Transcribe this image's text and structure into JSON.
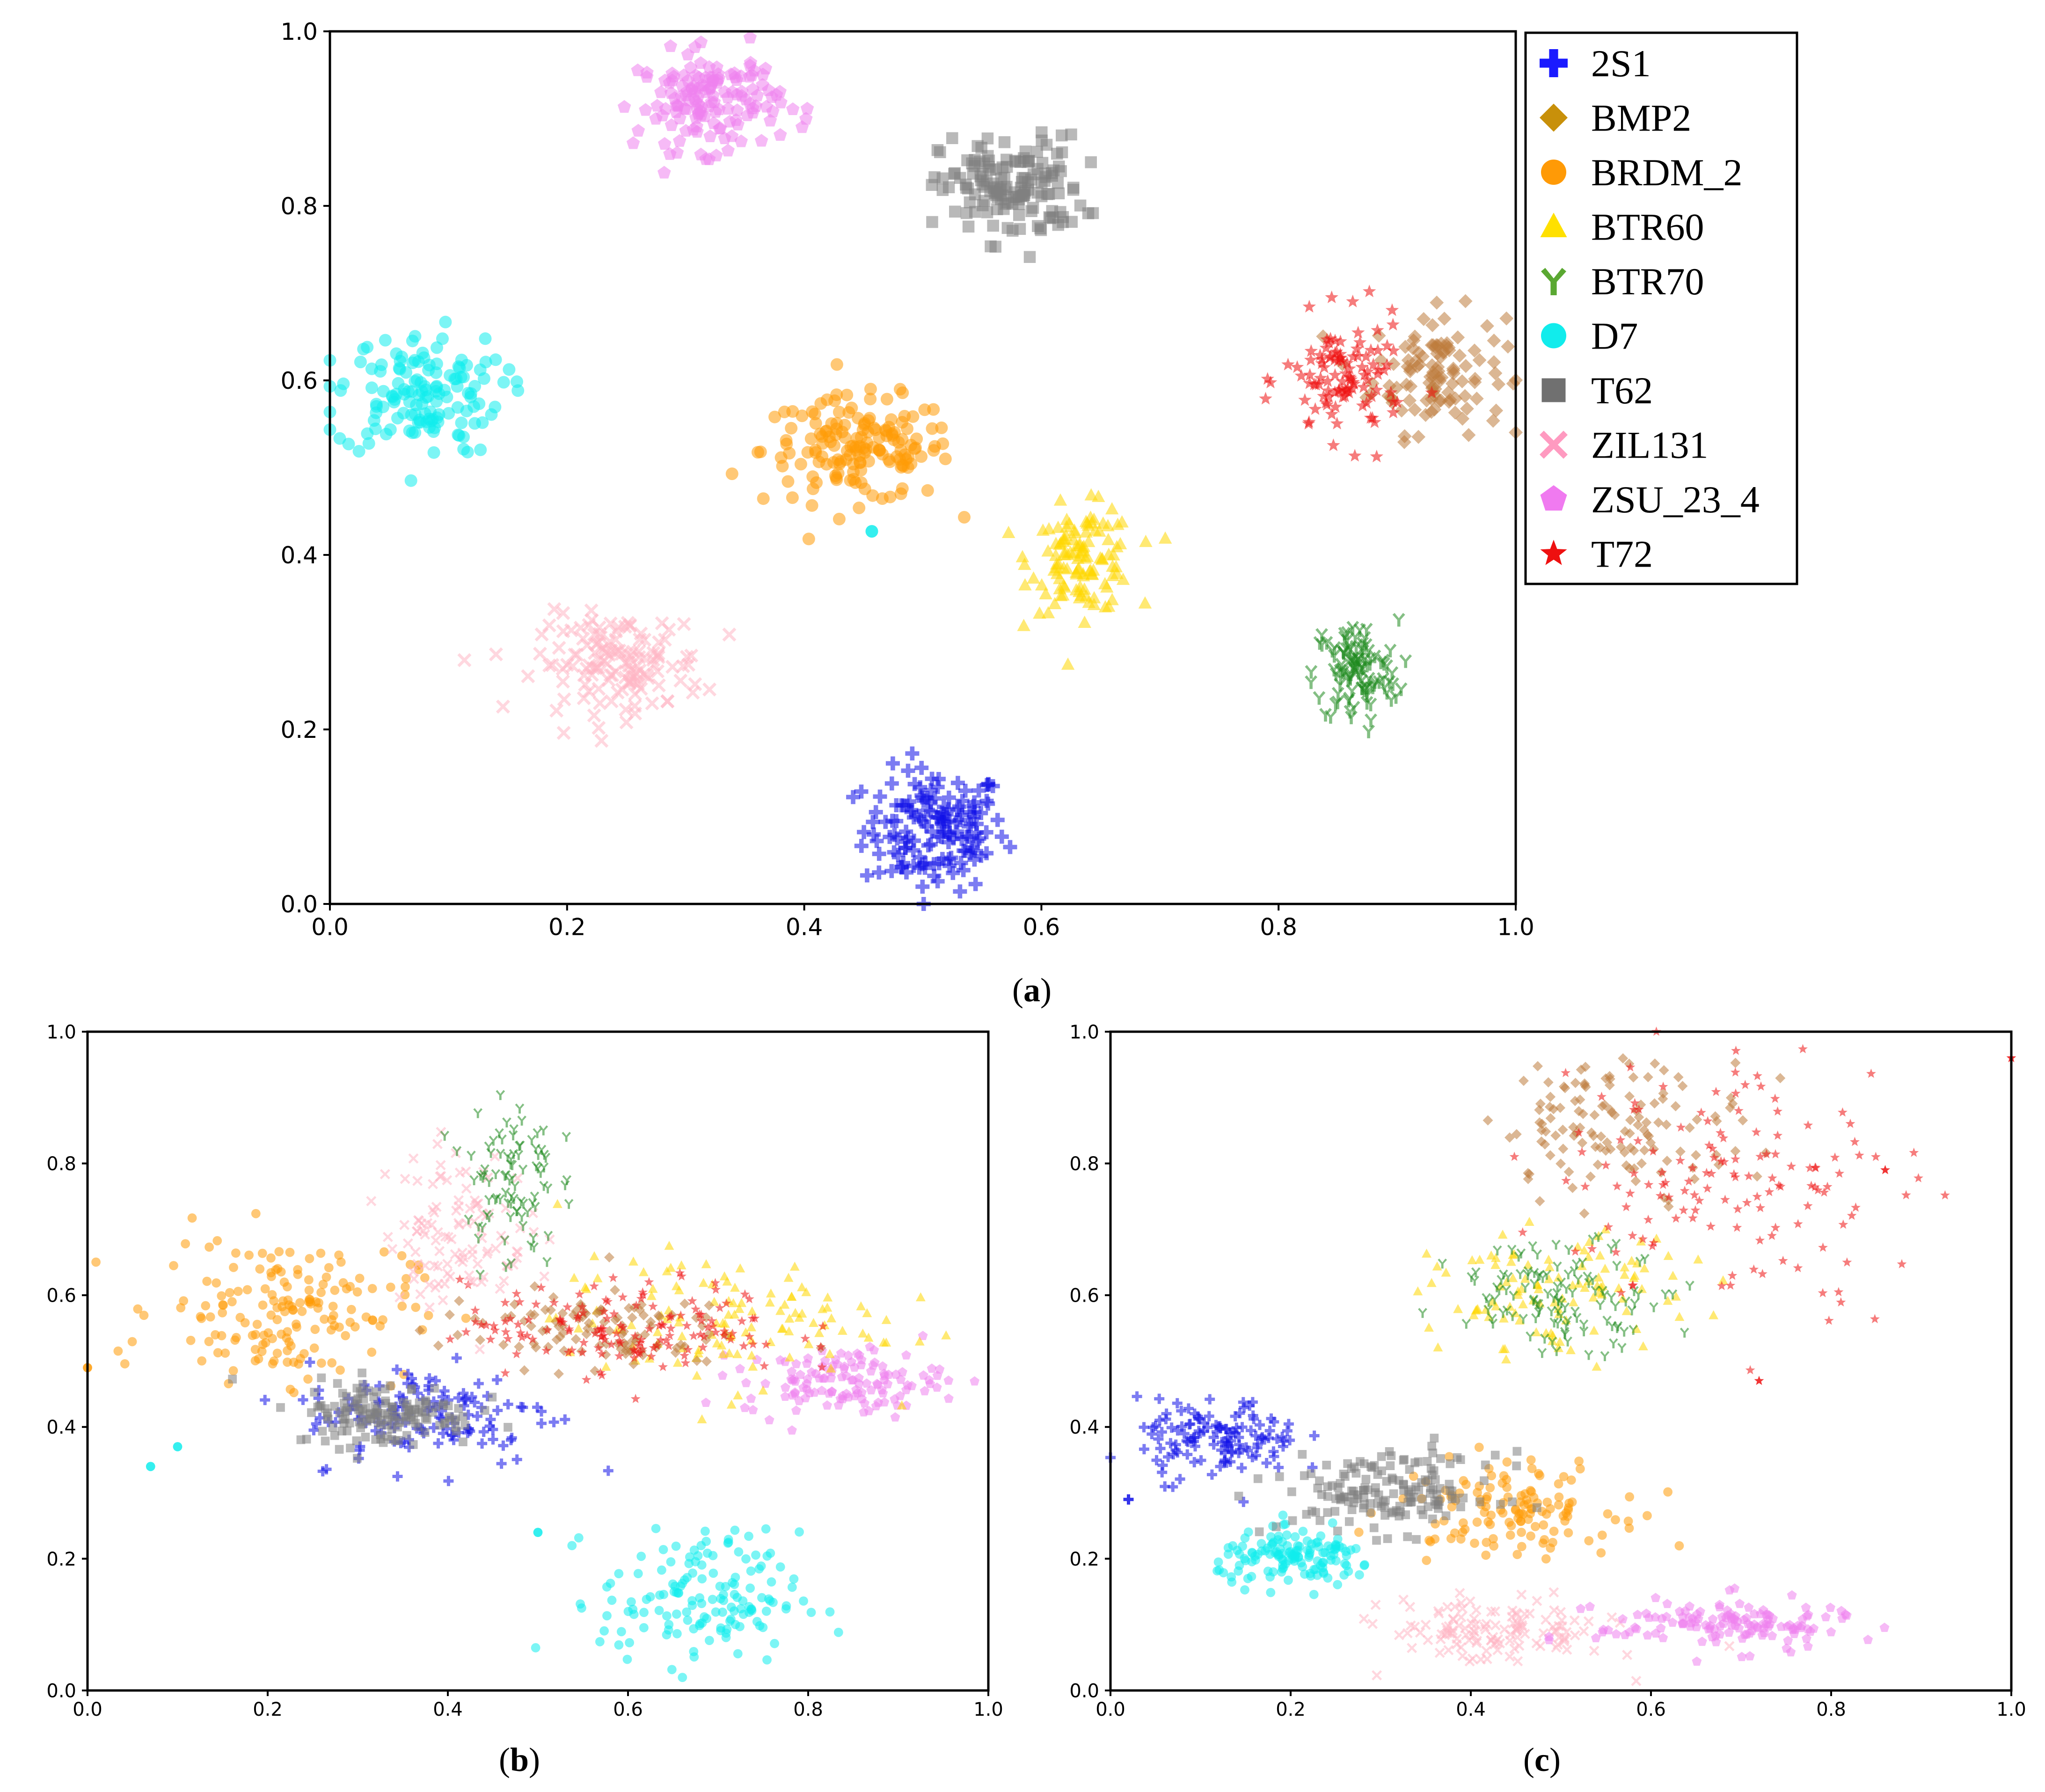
{
  "classes": [
    {
      "name": "2S1",
      "color": "#1010e8",
      "marker": "plus"
    },
    {
      "name": "BMP2",
      "color": "#bd7b3c",
      "marker": "diamond"
    },
    {
      "name": "BRDM_2",
      "color": "#ff9a06",
      "marker": "circle"
    },
    {
      "name": "BTR60",
      "color": "#ffd700",
      "marker": "triangle"
    },
    {
      "name": "BTR70",
      "color": "#1f8a1f",
      "marker": "tri-down"
    },
    {
      "name": "D7",
      "color": "#11ecec",
      "marker": "circle"
    },
    {
      "name": "T62",
      "color": "#808080",
      "marker": "square"
    },
    {
      "name": "ZIL131",
      "color": "#ffb7c5",
      "marker": "x"
    },
    {
      "name": "ZSU_23_4",
      "color": "#ee82ee",
      "marker": "pentagon"
    },
    {
      "name": "T72",
      "color": "#ee1010",
      "marker": "star"
    }
  ],
  "legend_colors": [
    "#1a1aff",
    "#c8900a",
    "#ff9a06",
    "#ffe000",
    "#5aa832",
    "#11ecec",
    "#707070",
    "#ff9ac0",
    "#f07af0",
    "#ee1010"
  ],
  "chart_data": [
    {
      "id": "a",
      "type": "scatter",
      "caption": "a",
      "xlim": [
        0.0,
        1.0
      ],
      "ylim": [
        0.0,
        1.0
      ],
      "xticks": [
        "0.0",
        "0.2",
        "0.4",
        "0.6",
        "0.8",
        "1.0"
      ],
      "yticks": [
        "0.0",
        "0.2",
        "0.4",
        "0.6",
        "0.8",
        "1.0"
      ],
      "legend": [
        "2S1",
        "BMP2",
        "BRDM_2",
        "BTR60",
        "BTR70",
        "D7",
        "T62",
        "ZIL131",
        "ZSU_23_4",
        "T72"
      ],
      "legend_position": "right-top (outside)",
      "clusters": [
        {
          "cls": "2S1",
          "cx": 0.51,
          "cy": 0.085,
          "sx": 0.03,
          "sy": 0.035,
          "n": 150
        },
        {
          "cls": "BMP2",
          "cx": 0.935,
          "cy": 0.61,
          "sx": 0.028,
          "sy": 0.035,
          "n": 110
        },
        {
          "cls": "BRDM_2",
          "cx": 0.445,
          "cy": 0.52,
          "sx": 0.04,
          "sy": 0.03,
          "n": 160
        },
        {
          "cls": "BTR60",
          "cx": 0.635,
          "cy": 0.395,
          "sx": 0.022,
          "sy": 0.03,
          "n": 120
        },
        {
          "cls": "BTR70",
          "cx": 0.865,
          "cy": 0.265,
          "sx": 0.018,
          "sy": 0.03,
          "n": 110
        },
        {
          "cls": "D7",
          "cx": 0.075,
          "cy": 0.585,
          "sx": 0.035,
          "sy": 0.035,
          "n": 140
        },
        {
          "cls": "T62",
          "cx": 0.575,
          "cy": 0.82,
          "sx": 0.03,
          "sy": 0.03,
          "n": 150
        },
        {
          "cls": "ZIL131",
          "cx": 0.245,
          "cy": 0.275,
          "sx": 0.035,
          "sy": 0.028,
          "n": 140
        },
        {
          "cls": "ZSU_23_4",
          "cx": 0.32,
          "cy": 0.92,
          "sx": 0.03,
          "sy": 0.028,
          "n": 150
        },
        {
          "cls": "T72",
          "cx": 0.855,
          "cy": 0.6,
          "sx": 0.025,
          "sy": 0.035,
          "n": 110
        }
      ],
      "outliers": [
        {
          "cls": "D7",
          "x": 0.457,
          "y": 0.427
        }
      ]
    },
    {
      "id": "b",
      "type": "scatter",
      "caption": "b",
      "xlim": [
        0.0,
        1.0
      ],
      "ylim": [
        0.0,
        1.0
      ],
      "xticks": [
        "0.0",
        "0.2",
        "0.4",
        "0.6",
        "0.8",
        "1.0"
      ],
      "yticks": [
        "0.0",
        "0.2",
        "0.4",
        "0.6",
        "0.8",
        "1.0"
      ],
      "clusters": [
        {
          "cls": "BRDM_2",
          "cx": 0.22,
          "cy": 0.58,
          "sx": 0.07,
          "sy": 0.055,
          "n": 170
        },
        {
          "cls": "D7",
          "cx": 0.68,
          "cy": 0.14,
          "sx": 0.055,
          "sy": 0.05,
          "n": 150
        },
        {
          "cls": "2S1",
          "cx": 0.38,
          "cy": 0.42,
          "sx": 0.07,
          "sy": 0.04,
          "n": 130
        },
        {
          "cls": "T62",
          "cx": 0.33,
          "cy": 0.42,
          "sx": 0.05,
          "sy": 0.025,
          "n": 150
        },
        {
          "cls": "ZSU_23_4",
          "cx": 0.84,
          "cy": 0.47,
          "sx": 0.055,
          "sy": 0.025,
          "n": 130
        },
        {
          "cls": "BTR60",
          "cx": 0.7,
          "cy": 0.56,
          "sx": 0.09,
          "sy": 0.05,
          "n": 120
        },
        {
          "cls": "BMP2",
          "cx": 0.55,
          "cy": 0.55,
          "sx": 0.08,
          "sy": 0.03,
          "n": 110
        },
        {
          "cls": "T72",
          "cx": 0.6,
          "cy": 0.55,
          "sx": 0.09,
          "sy": 0.035,
          "n": 150
        },
        {
          "cls": "ZIL131",
          "cx": 0.41,
          "cy": 0.7,
          "sx": 0.04,
          "sy": 0.06,
          "n": 110
        },
        {
          "cls": "BTR70",
          "cx": 0.47,
          "cy": 0.78,
          "sx": 0.025,
          "sy": 0.07,
          "n": 90
        }
      ],
      "outliers": [
        {
          "cls": "D7",
          "x": 0.07,
          "y": 0.34
        },
        {
          "cls": "D7",
          "x": 0.1,
          "y": 0.37
        },
        {
          "cls": "D7",
          "x": 0.5,
          "y": 0.24
        },
        {
          "cls": "BRDM_2",
          "x": 0.0,
          "y": 0.49
        }
      ]
    },
    {
      "id": "c",
      "type": "scatter",
      "caption": "c",
      "xlim": [
        0.0,
        1.0
      ],
      "ylim": [
        0.0,
        1.0
      ],
      "xticks": [
        "0.0",
        "0.2",
        "0.4",
        "0.6",
        "0.8",
        "1.0"
      ],
      "yticks": [
        "0.0",
        "0.2",
        "0.4",
        "0.6",
        "0.8",
        "1.0"
      ],
      "clusters": [
        {
          "cls": "2S1",
          "cx": 0.12,
          "cy": 0.38,
          "sx": 0.045,
          "sy": 0.03,
          "n": 130
        },
        {
          "cls": "D7",
          "cx": 0.21,
          "cy": 0.2,
          "sx": 0.045,
          "sy": 0.02,
          "n": 140
        },
        {
          "cls": "BRDM_2",
          "cx": 0.44,
          "cy": 0.28,
          "sx": 0.06,
          "sy": 0.035,
          "n": 130
        },
        {
          "cls": "T62",
          "cx": 0.31,
          "cy": 0.3,
          "sx": 0.06,
          "sy": 0.03,
          "n": 160
        },
        {
          "cls": "ZIL131",
          "cx": 0.43,
          "cy": 0.09,
          "sx": 0.06,
          "sy": 0.025,
          "n": 130
        },
        {
          "cls": "ZSU_23_4",
          "cx": 0.68,
          "cy": 0.1,
          "sx": 0.07,
          "sy": 0.02,
          "n": 140
        },
        {
          "cls": "BTR60",
          "cx": 0.5,
          "cy": 0.6,
          "sx": 0.07,
          "sy": 0.045,
          "n": 110
        },
        {
          "cls": "BTR70",
          "cx": 0.5,
          "cy": 0.6,
          "sx": 0.06,
          "sy": 0.04,
          "n": 120
        },
        {
          "cls": "BMP2",
          "cx": 0.57,
          "cy": 0.86,
          "sx": 0.07,
          "sy": 0.05,
          "n": 130
        },
        {
          "cls": "T72",
          "cx": 0.69,
          "cy": 0.78,
          "sx": 0.1,
          "sy": 0.1,
          "n": 140
        }
      ],
      "outliers": [
        {
          "cls": "2S1",
          "x": 0.02,
          "y": 0.29
        },
        {
          "cls": "T72",
          "x": 0.86,
          "y": 0.79
        },
        {
          "cls": "T72",
          "x": 1.0,
          "y": 0.96
        },
        {
          "cls": "T72",
          "x": 0.72,
          "y": 0.47
        }
      ]
    }
  ]
}
